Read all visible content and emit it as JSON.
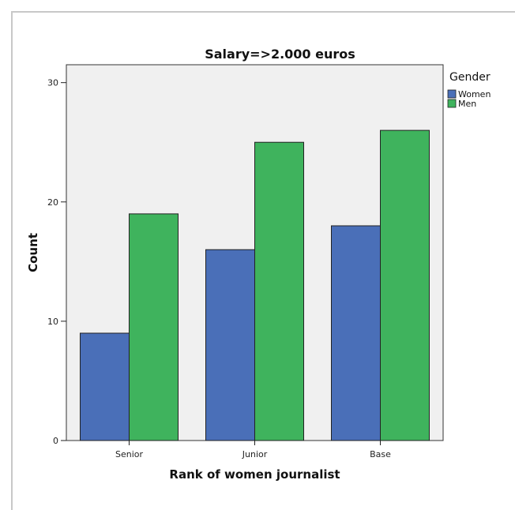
{
  "chart_data": {
    "type": "bar",
    "title": "Salary=>2.000 euros",
    "xlabel": "Rank of women journalist",
    "ylabel": "Count",
    "categories": [
      "Senior",
      "Junior",
      "Base"
    ],
    "series": [
      {
        "name": "Women",
        "values": [
          9,
          16,
          18
        ],
        "color": "#4a6fb8"
      },
      {
        "name": "Men",
        "values": [
          19,
          25,
          26
        ],
        "color": "#3fb35d"
      }
    ],
    "ylim": [
      0,
      31.5
    ],
    "yticks": [
      0,
      10,
      20,
      30
    ],
    "legend_title": "Gender",
    "legend_position": "top-right",
    "grid": false,
    "plot_background": "#f0f0f0"
  }
}
